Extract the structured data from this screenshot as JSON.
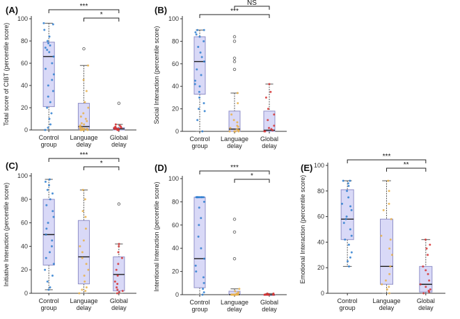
{
  "colors": {
    "box_fill": "#d9d9f7",
    "box_stroke": "#9090c8",
    "median": "#1a1a1a",
    "whisker": "#555555",
    "control": "#2f7fd0",
    "language": "#e8b04a",
    "global": "#d63232",
    "open": "#666666"
  },
  "chart_data": [
    {
      "type": "box",
      "panel_label": "(A)",
      "ylabel": "Total score of CIBT (percentile score)",
      "ylim": [
        0,
        100
      ],
      "yticks": [
        0,
        20,
        40,
        60,
        80,
        100
      ],
      "categories": [
        "Control group",
        "Language delay",
        "Global delay"
      ],
      "category_lines": [
        [
          "Control",
          "group"
        ],
        [
          "Language",
          "delay"
        ],
        [
          "Global",
          "delay"
        ]
      ],
      "boxes": [
        {
          "min": 0,
          "q1": 21,
          "median": 66,
          "q3": 79,
          "max": 96
        },
        {
          "min": 0,
          "q1": 1,
          "median": 3,
          "q3": 24,
          "max": 58
        },
        {
          "min": 0,
          "q1": 0,
          "median": 1,
          "q3": 2,
          "max": 5
        }
      ],
      "outliers": [
        [],
        [
          73
        ],
        [
          24
        ]
      ],
      "points": [
        [
          96,
          95,
          90,
          84,
          80,
          78,
          76,
          74,
          72,
          70,
          66,
          60,
          55,
          50,
          45,
          40,
          35,
          30,
          25,
          20,
          15,
          10,
          5,
          2,
          0
        ],
        [
          58,
          45,
          35,
          25,
          20,
          15,
          12,
          10,
          8,
          6,
          5,
          4,
          3,
          2,
          2,
          1,
          1,
          1,
          0,
          0,
          0,
          0,
          0
        ],
        [
          5,
          4,
          3,
          3,
          2,
          2,
          2,
          1,
          1,
          1,
          1,
          0,
          0,
          0,
          0
        ]
      ],
      "comparisons": [
        {
          "from": 0,
          "to": 2,
          "label": "***",
          "level": 0
        },
        {
          "from": 1,
          "to": 2,
          "label": "*",
          "level": 1
        }
      ]
    },
    {
      "type": "box",
      "panel_label": "(B)",
      "ylabel": "Social Interaction (percentile score)",
      "ylim": [
        0,
        100
      ],
      "yticks": [
        0,
        20,
        40,
        60,
        80,
        100
      ],
      "categories": [
        "Control group",
        "Language delay",
        "Global delay"
      ],
      "category_lines": [
        [
          "Control",
          "group"
        ],
        [
          "Language",
          "delay"
        ],
        [
          "Global",
          "delay"
        ]
      ],
      "boxes": [
        {
          "min": 0,
          "q1": 33,
          "median": 62,
          "q3": 84,
          "max": 90
        },
        {
          "min": 0,
          "q1": 0,
          "median": 2,
          "q3": 18,
          "max": 34
        },
        {
          "min": 0,
          "q1": 0,
          "median": 1,
          "q3": 18,
          "max": 42
        }
      ],
      "outliers": [
        [],
        [
          84,
          80,
          65,
          62,
          55
        ],
        []
      ],
      "points": [
        [
          90,
          90,
          88,
          86,
          84,
          80,
          75,
          70,
          66,
          62,
          55,
          50,
          45,
          42,
          40,
          35,
          30,
          25,
          20,
          18,
          10,
          0
        ],
        [
          34,
          25,
          15,
          10,
          8,
          5,
          4,
          3,
          2,
          1,
          1,
          0,
          0,
          0,
          0
        ],
        [
          42,
          35,
          30,
          20,
          15,
          10,
          5,
          3,
          2,
          1,
          0,
          0
        ]
      ],
      "comparisons": [
        {
          "from": 0,
          "to": 2,
          "label": "***",
          "level": 1
        },
        {
          "from": 1,
          "to": 2,
          "label": "NS",
          "level": 0
        }
      ]
    },
    {
      "type": "box",
      "panel_label": "(C)",
      "ylabel": "Initiative Interaction (percentile score)",
      "ylim": [
        0,
        100
      ],
      "yticks": [
        0,
        20,
        40,
        60,
        80,
        100
      ],
      "categories": [
        "Control group",
        "Language delay",
        "Global delay"
      ],
      "category_lines": [
        [
          "Control",
          "group"
        ],
        [
          "Language",
          "delay"
        ],
        [
          "Global",
          "delay"
        ]
      ],
      "boxes": [
        {
          "min": 3,
          "q1": 24,
          "median": 50,
          "q3": 80,
          "max": 97
        },
        {
          "min": 0,
          "q1": 8,
          "median": 31,
          "q3": 62,
          "max": 88
        },
        {
          "min": 0,
          "q1": 2,
          "median": 16,
          "q3": 31,
          "max": 42
        }
      ],
      "outliers": [
        [],
        [],
        [
          76
        ]
      ],
      "points": [
        [
          97,
          95,
          92,
          88,
          85,
          80,
          75,
          70,
          65,
          60,
          55,
          50,
          45,
          40,
          35,
          30,
          25,
          20,
          15,
          10,
          5,
          3
        ],
        [
          88,
          80,
          70,
          65,
          55,
          45,
          40,
          35,
          30,
          25,
          20,
          15,
          10,
          5,
          3,
          2,
          0
        ],
        [
          42,
          40,
          35,
          30,
          25,
          20,
          15,
          10,
          8,
          5,
          3,
          2,
          1,
          0
        ]
      ],
      "comparisons": [
        {
          "from": 0,
          "to": 2,
          "label": "***",
          "level": 0
        },
        {
          "from": 1,
          "to": 2,
          "label": "*",
          "level": 1
        }
      ]
    },
    {
      "type": "box",
      "panel_label": "(D)",
      "ylabel": "Intentional Interaction (percentile score)",
      "ylim": [
        0,
        100
      ],
      "yticks": [
        0,
        20,
        40,
        60,
        80,
        100
      ],
      "categories": [
        "Control group",
        "Language delay",
        "Global delay"
      ],
      "category_lines": [
        [
          "Control",
          "group"
        ],
        [
          "Language",
          "delay"
        ],
        [
          "Global",
          "delay"
        ]
      ],
      "boxes": [
        {
          "min": 0,
          "q1": 6,
          "median": 31,
          "q3": 84,
          "max": 84
        },
        {
          "min": 0,
          "q1": 0,
          "median": 0,
          "q3": 3,
          "max": 5
        },
        {
          "min": 0,
          "q1": 0,
          "median": 0,
          "q3": 0,
          "max": 1
        }
      ],
      "outliers": [
        [],
        [
          65,
          54,
          31
        ],
        []
      ],
      "points": [
        [
          84,
          84,
          84,
          84,
          84,
          84,
          84,
          84,
          84,
          80,
          75,
          66,
          60,
          50,
          40,
          31,
          25,
          20,
          15,
          10,
          5,
          2,
          0
        ],
        [
          5,
          3,
          2,
          1,
          1,
          0,
          0,
          0,
          0,
          0,
          0,
          0,
          0,
          0,
          0
        ],
        [
          1,
          1,
          0,
          0,
          0,
          0,
          0,
          0,
          0,
          0,
          0
        ]
      ],
      "comparisons": [
        {
          "from": 0,
          "to": 2,
          "label": "***",
          "level": 0
        },
        {
          "from": 1,
          "to": 2,
          "label": "*",
          "level": 1
        }
      ]
    },
    {
      "type": "box",
      "panel_label": "(E)",
      "ylabel": "Emotional Interaction (percentile score)",
      "ylim": [
        0,
        100
      ],
      "yticks": [
        0,
        20,
        40,
        60,
        80,
        100
      ],
      "categories": [
        "Control group",
        "Language delay",
        "Global delay"
      ],
      "category_lines": [
        [
          "Control",
          "group"
        ],
        [
          "Language",
          "delay"
        ],
        [
          "Global",
          "delay"
        ]
      ],
      "boxes": [
        {
          "min": 21,
          "q1": 42,
          "median": 58,
          "q3": 81,
          "max": 88
        },
        {
          "min": 0,
          "q1": 7,
          "median": 21,
          "q3": 58,
          "max": 88
        },
        {
          "min": 0,
          "q1": 1,
          "median": 7,
          "q3": 21,
          "max": 42
        }
      ],
      "outliers": [
        [],
        [],
        []
      ],
      "points": [
        [
          88,
          88,
          86,
          84,
          80,
          75,
          70,
          68,
          65,
          60,
          58,
          55,
          50,
          45,
          42,
          38,
          32,
          28,
          25,
          21
        ],
        [
          88,
          80,
          70,
          65,
          58,
          45,
          42,
          35,
          30,
          21,
          15,
          10,
          7,
          5,
          3,
          0
        ],
        [
          42,
          38,
          35,
          30,
          21,
          18,
          15,
          10,
          7,
          5,
          3,
          2,
          1,
          0
        ]
      ],
      "comparisons": [
        {
          "from": 0,
          "to": 2,
          "label": "***",
          "level": 0
        },
        {
          "from": 1,
          "to": 2,
          "label": "**",
          "level": 1
        }
      ]
    }
  ]
}
